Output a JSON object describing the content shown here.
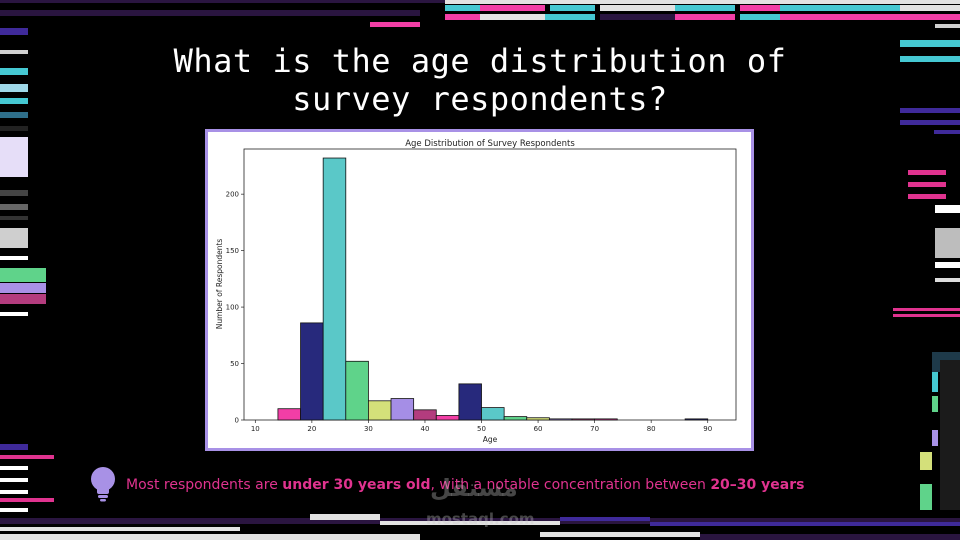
{
  "slide": {
    "title_line1": "What is the age distribution of",
    "title_line2": "survey respondents?",
    "caption": {
      "part1": "Most respondents are ",
      "bold1": "under 30 years old",
      "part2": ", with a notable concentration between ",
      "bold2": "20–30 years"
    },
    "bulb_icon": "lightbulb-icon",
    "watermark": {
      "arabic": "مستقل",
      "latin": "mostaql.com"
    }
  },
  "chart_data": {
    "type": "bar",
    "title": "Age Distribution of Survey Respondents",
    "xlabel": "Age",
    "ylabel": "Number of Respondents",
    "xlim": [
      8,
      95
    ],
    "ylim": [
      0,
      240
    ],
    "xticks": [
      10,
      20,
      30,
      40,
      50,
      60,
      70,
      80,
      90
    ],
    "yticks": [
      0,
      50,
      100,
      150,
      200
    ],
    "grid": false,
    "bins": [
      {
        "x0": 14,
        "x1": 18,
        "value": 10,
        "color": "#f23ea6"
      },
      {
        "x0": 18,
        "x1": 22,
        "value": 86,
        "color": "#27297c"
      },
      {
        "x0": 22,
        "x1": 26,
        "value": 232,
        "color": "#5ac8c8"
      },
      {
        "x0": 26,
        "x1": 30,
        "value": 52,
        "color": "#5fd38a"
      },
      {
        "x0": 30,
        "x1": 34,
        "value": 17,
        "color": "#d4e07a"
      },
      {
        "x0": 34,
        "x1": 38,
        "value": 19,
        "color": "#a58ee6"
      },
      {
        "x0": 38,
        "x1": 42,
        "value": 9,
        "color": "#b33c7e"
      },
      {
        "x0": 42,
        "x1": 46,
        "value": 4,
        "color": "#f23ea6"
      },
      {
        "x0": 46,
        "x1": 50,
        "value": 32,
        "color": "#27297c"
      },
      {
        "x0": 50,
        "x1": 54,
        "value": 11,
        "color": "#5ac8c8"
      },
      {
        "x0": 54,
        "x1": 58,
        "value": 3,
        "color": "#5fd38a"
      },
      {
        "x0": 58,
        "x1": 62,
        "value": 2,
        "color": "#d4e07a"
      },
      {
        "x0": 62,
        "x1": 66,
        "value": 1,
        "color": "#a58ee6"
      },
      {
        "x0": 66,
        "x1": 70,
        "value": 1,
        "color": "#b33c7e"
      },
      {
        "x0": 70,
        "x1": 74,
        "value": 1,
        "color": "#f23ea6"
      },
      {
        "x0": 86,
        "x1": 90,
        "value": 1,
        "color": "#27297c"
      }
    ]
  },
  "colors": {
    "background": "#000000",
    "accent_pink": "#e0338f",
    "teal": "#45c8d2",
    "frame_purple": "#a891e6"
  }
}
